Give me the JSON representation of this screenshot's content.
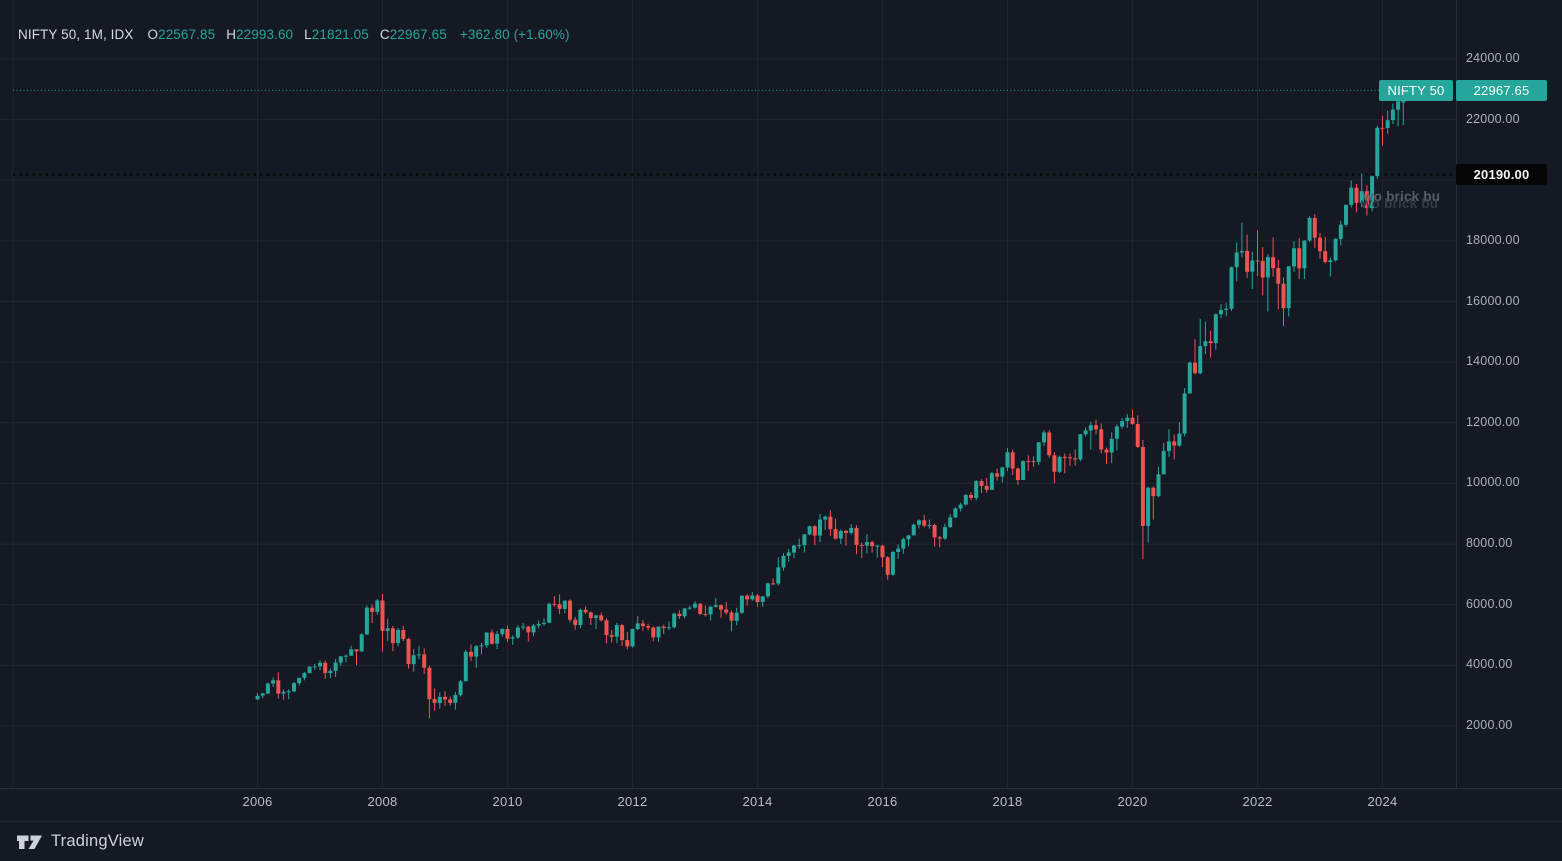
{
  "legend": {
    "title": "NIFTY 50, 1M, IDX",
    "o_label": "O",
    "o_value": "22567.85",
    "h_label": "H",
    "h_value": "22993.60",
    "l_label": "L",
    "l_value": "21821.05",
    "c_label": "C",
    "c_value": "22967.65",
    "change": "+362.80 (+1.60%)"
  },
  "badges": {
    "symbol": "NIFTY 50",
    "last_price": "22967.65",
    "alert_price": "20190.00"
  },
  "annotations": {
    "overlay_text_1": "wo brick bu",
    "overlay_text_2": "wo brick bu"
  },
  "footer": {
    "brand": "TradingView"
  },
  "colors": {
    "background": "#141923",
    "up": "#26a69a",
    "down": "#ef5350",
    "grid": "rgba(240,243,250,0.055)",
    "axis_border": "#2a2e39",
    "axis_text": "#aab0bc",
    "alert_line": "#0a0a0a",
    "last_price_line": "#26a69a"
  },
  "chart_data": {
    "type": "candlestick",
    "symbol": "NIFTY 50",
    "interval": "1M",
    "exchange": "IDX",
    "start": "2006-01",
    "last_close": 22967.65,
    "alert_level": 20190.0,
    "y_axis": {
      "min": 2000,
      "max": 24000,
      "tick_step": 2000,
      "ticks": [
        24000,
        22000,
        20000,
        18000,
        16000,
        14000,
        12000,
        10000,
        8000,
        6000,
        4000,
        2000
      ],
      "tick_labels": [
        "24000.00",
        "22000.00",
        "20000.00",
        "18000.00",
        "16000.00",
        "14000.00",
        "12000.00",
        "10000.00",
        "8000.00",
        "6000.00",
        "4000.00",
        "2000.00"
      ]
    },
    "x_axis": {
      "start_year": 2006,
      "label_step_years": 2,
      "year_labels": [
        "2006",
        "2008",
        "2010",
        "2012",
        "2014",
        "2016",
        "2018",
        "2020",
        "2022",
        "2024"
      ]
    },
    "candles": [
      [
        2880,
        3090,
        2860,
        3001
      ],
      [
        3001,
        3090,
        2910,
        3074
      ],
      [
        3074,
        3433,
        3040,
        3403
      ],
      [
        3403,
        3598,
        3290,
        3508
      ],
      [
        3508,
        3774,
        2896,
        3071
      ],
      [
        3071,
        3200,
        2866,
        3128
      ],
      [
        3128,
        3208,
        2878,
        3143
      ],
      [
        3143,
        3452,
        3113,
        3414
      ],
      [
        3414,
        3603,
        3328,
        3588
      ],
      [
        3588,
        3782,
        3508,
        3744
      ],
      [
        3744,
        3976,
        3737,
        3955
      ],
      [
        3955,
        4047,
        3849,
        3966
      ],
      [
        3966,
        4167,
        3833,
        4083
      ],
      [
        4083,
        4160,
        3555,
        3745
      ],
      [
        3745,
        3901,
        3576,
        3822
      ],
      [
        3822,
        4218,
        3617,
        4088
      ],
      [
        4088,
        4306,
        3981,
        4296
      ],
      [
        4296,
        4362,
        4100,
        4318
      ],
      [
        4318,
        4648,
        4304,
        4529
      ],
      [
        4529,
        4532,
        4002,
        4464
      ],
      [
        4464,
        5056,
        4445,
        5021
      ],
      [
        5021,
        5976,
        5001,
        5901
      ],
      [
        5901,
        6011,
        5394,
        5763
      ],
      [
        5763,
        6185,
        5677,
        6139
      ],
      [
        6139,
        6357,
        4448,
        5137
      ],
      [
        5137,
        5545,
        4803,
        5224
      ],
      [
        5224,
        5298,
        4468,
        4735
      ],
      [
        4735,
        5231,
        4628,
        5166
      ],
      [
        5166,
        5299,
        4801,
        4870
      ],
      [
        4870,
        4908,
        3896,
        4041
      ],
      [
        4041,
        4540,
        3790,
        4333
      ],
      [
        4333,
        4650,
        4202,
        4360
      ],
      [
        4360,
        4558,
        3715,
        3921
      ],
      [
        3921,
        4000,
        2252,
        2886
      ],
      [
        2886,
        3241,
        2503,
        2755
      ],
      [
        2755,
        3111,
        2571,
        2959
      ],
      [
        2959,
        3147,
        2661,
        2875
      ],
      [
        2875,
        2969,
        2677,
        2764
      ],
      [
        2764,
        3123,
        2539,
        3021
      ],
      [
        3021,
        3518,
        2965,
        3474
      ],
      [
        3474,
        4509,
        3474,
        4448
      ],
      [
        4448,
        4693,
        4143,
        4291
      ],
      [
        4291,
        4669,
        3918,
        4636
      ],
      [
        4636,
        4743,
        4360,
        4662
      ],
      [
        4662,
        5087,
        4576,
        5084
      ],
      [
        5084,
        5181,
        4687,
        4712
      ],
      [
        4712,
        5138,
        4538,
        5033
      ],
      [
        5033,
        5221,
        4944,
        5201
      ],
      [
        5201,
        5310,
        4766,
        4882
      ],
      [
        4882,
        4992,
        4675,
        4922
      ],
      [
        4922,
        5329,
        4868,
        5249
      ],
      [
        5249,
        5400,
        5160,
        5278
      ],
      [
        5278,
        5302,
        4786,
        5086
      ],
      [
        5086,
        5367,
        4961,
        5313
      ],
      [
        5313,
        5477,
        5225,
        5368
      ],
      [
        5368,
        5549,
        5302,
        5403
      ],
      [
        5403,
        6073,
        5403,
        6030
      ],
      [
        6030,
        6284,
        5937,
        6018
      ],
      [
        6018,
        6339,
        5690,
        5863
      ],
      [
        5863,
        6147,
        5721,
        6134
      ],
      [
        6134,
        6181,
        5416,
        5506
      ],
      [
        5506,
        5599,
        5178,
        5333
      ],
      [
        5333,
        5872,
        5222,
        5833
      ],
      [
        5833,
        5944,
        5693,
        5750
      ],
      [
        5750,
        5775,
        5329,
        5560
      ],
      [
        5560,
        5658,
        5196,
        5647
      ],
      [
        5647,
        5740,
        5454,
        5482
      ],
      [
        5482,
        5552,
        4720,
        5001
      ],
      [
        5001,
        5169,
        4759,
        4943
      ],
      [
        4943,
        5400,
        4728,
        5327
      ],
      [
        5327,
        5360,
        4640,
        4832
      ],
      [
        4832,
        5099,
        4531,
        4624
      ],
      [
        4624,
        5217,
        4588,
        5199
      ],
      [
        5199,
        5630,
        5157,
        5385
      ],
      [
        5385,
        5499,
        5136,
        5296
      ],
      [
        5296,
        5379,
        5154,
        5248
      ],
      [
        5248,
        5280,
        4788,
        4924
      ],
      [
        4924,
        5286,
        4770,
        5279
      ],
      [
        5279,
        5349,
        5032,
        5229
      ],
      [
        5229,
        5448,
        5164,
        5259
      ],
      [
        5259,
        5735,
        5215,
        5703
      ],
      [
        5703,
        5815,
        5534,
        5620
      ],
      [
        5620,
        5885,
        5548,
        5880
      ],
      [
        5880,
        5965,
        5823,
        5905
      ],
      [
        5905,
        6112,
        5872,
        6035
      ],
      [
        6035,
        6052,
        5671,
        5693
      ],
      [
        5693,
        5971,
        5604,
        5683
      ],
      [
        5683,
        5963,
        5477,
        5930
      ],
      [
        5930,
        6229,
        5910,
        5986
      ],
      [
        5986,
        6011,
        5566,
        5842
      ],
      [
        5842,
        6093,
        5675,
        5742
      ],
      [
        5742,
        5808,
        5119,
        5472
      ],
      [
        5472,
        5898,
        5318,
        5735
      ],
      [
        5735,
        6309,
        5700,
        6299
      ],
      [
        6299,
        6343,
        5972,
        6176
      ],
      [
        6176,
        6415,
        6129,
        6304
      ],
      [
        6304,
        6358,
        5933,
        6090
      ],
      [
        6090,
        6283,
        5933,
        6277
      ],
      [
        6277,
        6730,
        6212,
        6704
      ],
      [
        6704,
        6869,
        6650,
        6696
      ],
      [
        6696,
        7563,
        6638,
        7230
      ],
      [
        7230,
        7700,
        7118,
        7611
      ],
      [
        7611,
        7840,
        7422,
        7721
      ],
      [
        7721,
        7968,
        7540,
        7954
      ],
      [
        7954,
        8180,
        7841,
        7965
      ],
      [
        7965,
        8330,
        7723,
        8322
      ],
      [
        8322,
        8617,
        8290,
        8588
      ],
      [
        8588,
        8626,
        7961,
        8283
      ],
      [
        8283,
        8997,
        8065,
        8809
      ],
      [
        8809,
        8941,
        8470,
        8902
      ],
      [
        8902,
        9119,
        8269,
        8491
      ],
      [
        8491,
        8845,
        8144,
        8182
      ],
      [
        8182,
        8489,
        7997,
        8434
      ],
      [
        8434,
        8467,
        7940,
        8369
      ],
      [
        8369,
        8655,
        8315,
        8533
      ],
      [
        8533,
        8622,
        7667,
        7971
      ],
      [
        7971,
        8055,
        7539,
        7949
      ],
      [
        7949,
        8336,
        7691,
        8066
      ],
      [
        8066,
        8116,
        7714,
        7935
      ],
      [
        7935,
        7979,
        7551,
        7946
      ],
      [
        7946,
        7972,
        7241,
        7564
      ],
      [
        7564,
        7600,
        6826,
        6987
      ],
      [
        6987,
        7777,
        6961,
        7738
      ],
      [
        7738,
        7992,
        7516,
        7850
      ],
      [
        7850,
        8214,
        7678,
        8160
      ],
      [
        8160,
        8308,
        7927,
        8288
      ],
      [
        8288,
        8674,
        8287,
        8639
      ],
      [
        8639,
        8819,
        8518,
        8786
      ],
      [
        8786,
        8968,
        8555,
        8611
      ],
      [
        8611,
        8807,
        8506,
        8626
      ],
      [
        8626,
        8669,
        7916,
        8225
      ],
      [
        8225,
        8275,
        7893,
        8186
      ],
      [
        8186,
        8673,
        8133,
        8561
      ],
      [
        8561,
        8982,
        8537,
        8880
      ],
      [
        8880,
        9218,
        8860,
        9174
      ],
      [
        9174,
        9367,
        9075,
        9304
      ],
      [
        9304,
        9649,
        9269,
        9621
      ],
      [
        9621,
        9709,
        9448,
        9521
      ],
      [
        9521,
        10115,
        9448,
        10077
      ],
      [
        10077,
        10138,
        9685,
        9918
      ],
      [
        9918,
        10179,
        9688,
        9789
      ],
      [
        9789,
        10384,
        9784,
        10335
      ],
      [
        10335,
        10490,
        10094,
        10227
      ],
      [
        10227,
        10552,
        10033,
        10531
      ],
      [
        10531,
        11172,
        10404,
        11028
      ],
      [
        11028,
        11117,
        10276,
        10493
      ],
      [
        10493,
        10525,
        9952,
        10114
      ],
      [
        10114,
        10759,
        10111,
        10739
      ],
      [
        10739,
        10929,
        10418,
        10736
      ],
      [
        10736,
        10893,
        10550,
        10714
      ],
      [
        10714,
        11366,
        10605,
        11357
      ],
      [
        11357,
        11760,
        11235,
        11681
      ],
      [
        11681,
        11752,
        10850,
        10930
      ],
      [
        10930,
        11036,
        10005,
        10387
      ],
      [
        10387,
        10923,
        10342,
        10877
      ],
      [
        10877,
        10985,
        10334,
        10863
      ],
      [
        10863,
        10987,
        10584,
        10831
      ],
      [
        10831,
        11119,
        10586,
        10793
      ],
      [
        10793,
        11630,
        10730,
        11624
      ],
      [
        11624,
        11857,
        11550,
        11748
      ],
      [
        11748,
        12041,
        11109,
        11923
      ],
      [
        11923,
        12103,
        11626,
        11789
      ],
      [
        11789,
        11982,
        10999,
        11118
      ],
      [
        11118,
        11181,
        10637,
        11023
      ],
      [
        11023,
        11695,
        10671,
        11474
      ],
      [
        11474,
        11945,
        11090,
        11877
      ],
      [
        11877,
        12159,
        11803,
        12056
      ],
      [
        12056,
        12294,
        11832,
        12168
      ],
      [
        12168,
        12431,
        11930,
        11962
      ],
      [
        11962,
        12247,
        11175,
        11202
      ],
      [
        11202,
        11433,
        7511,
        8598
      ],
      [
        8598,
        9889,
        8056,
        9860
      ],
      [
        9860,
        9899,
        8807,
        9580
      ],
      [
        9580,
        10553,
        9545,
        10302
      ],
      [
        10302,
        11341,
        10300,
        11073
      ],
      [
        11073,
        11794,
        10882,
        11388
      ],
      [
        11388,
        11618,
        10790,
        11248
      ],
      [
        11248,
        12025,
        11205,
        11642
      ],
      [
        11642,
        13146,
        11557,
        12969
      ],
      [
        12969,
        14025,
        12963,
        13982
      ],
      [
        13982,
        14754,
        13597,
        13635
      ],
      [
        13635,
        15432,
        13597,
        14529
      ],
      [
        14529,
        15337,
        14264,
        14691
      ],
      [
        14691,
        15045,
        14151,
        14631
      ],
      [
        14631,
        15606,
        14416,
        15583
      ],
      [
        15583,
        15916,
        15450,
        15722
      ],
      [
        15722,
        15962,
        15513,
        15763
      ],
      [
        15763,
        17154,
        15687,
        17132
      ],
      [
        17132,
        17948,
        16667,
        17618
      ],
      [
        17618,
        18604,
        17453,
        17672
      ],
      [
        17672,
        18210,
        16782,
        16983
      ],
      [
        16983,
        17641,
        16410,
        17354
      ],
      [
        17354,
        18351,
        16836,
        17340
      ],
      [
        17340,
        17795,
        16203,
        16794
      ],
      [
        16794,
        17560,
        15671,
        17465
      ],
      [
        17465,
        18115,
        16824,
        17103
      ],
      [
        17103,
        17377,
        15740,
        16585
      ],
      [
        16585,
        16794,
        15183,
        15780
      ],
      [
        15780,
        17173,
        15511,
        17158
      ],
      [
        17158,
        17993,
        16988,
        17759
      ],
      [
        17759,
        18097,
        16748,
        17094
      ],
      [
        17094,
        18022,
        16747,
        18012
      ],
      [
        18012,
        18816,
        17959,
        18758
      ],
      [
        18758,
        18888,
        17774,
        18105
      ],
      [
        18105,
        18265,
        17405,
        17662
      ],
      [
        17662,
        18135,
        17255,
        17304
      ],
      [
        17304,
        17454,
        16828,
        17360
      ],
      [
        17360,
        18089,
        17313,
        18065
      ],
      [
        18065,
        18662,
        17850,
        18534
      ],
      [
        18534,
        19201,
        18464,
        19189
      ],
      [
        19189,
        19992,
        19100,
        19754
      ],
      [
        19754,
        19876,
        18942,
        19254
      ],
      [
        19254,
        20222,
        19120,
        19638
      ],
      [
        19638,
        19849,
        18838,
        19080
      ],
      [
        19080,
        20158,
        18973,
        20133
      ],
      [
        20133,
        21801,
        20043,
        21731
      ],
      [
        21731,
        22127,
        21138,
        21726
      ],
      [
        21726,
        22298,
        21530,
        21983
      ],
      [
        21983,
        22527,
        21860,
        22327
      ],
      [
        22327,
        22784,
        21778,
        22605
      ],
      [
        22567.85,
        22993.6,
        21821.05,
        22967.65
      ]
    ]
  }
}
